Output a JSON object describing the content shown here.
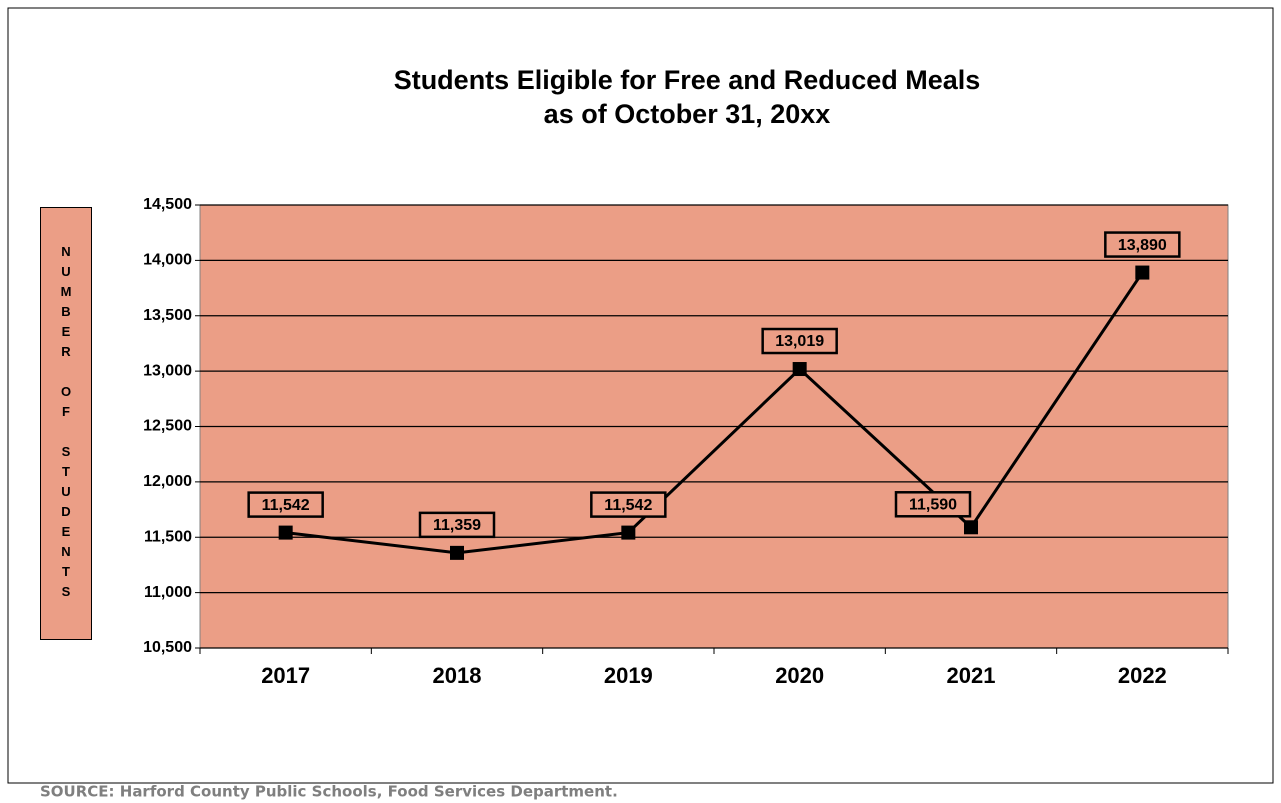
{
  "chart_data": {
    "type": "line",
    "title": "Students Eligible for Free and Reduced Meals",
    "subtitle": "as of October 31, 20xx",
    "ylabel": "NUMBER OF STUDENTS",
    "source": "SOURCE:  Harford County Public Schools, Food Services Department.",
    "categories": [
      "2017",
      "2018",
      "2019",
      "2020",
      "2021",
      "2022"
    ],
    "series": [
      {
        "name": "Students",
        "color": "#000000",
        "values": [
          11542,
          11359,
          11542,
          13019,
          11590,
          13890
        ],
        "value_labels": [
          "11,542",
          "11,359",
          "11,542",
          "13,019",
          "11,590",
          "13,890"
        ]
      }
    ],
    "plot_color": "#eb9e86",
    "ylim": [
      10500,
      14500
    ],
    "yticks": [
      {
        "value": 10500,
        "label": "10,500"
      },
      {
        "value": 11000,
        "label": "11,000"
      },
      {
        "value": 11500,
        "label": "11,500"
      },
      {
        "value": 12000,
        "label": "12,000"
      },
      {
        "value": 12500,
        "label": "12,500"
      },
      {
        "value": 13000,
        "label": "13,000"
      },
      {
        "value": 13500,
        "label": "13,500"
      },
      {
        "value": 14000,
        "label": "14,000"
      },
      {
        "value": 14500,
        "label": "14,500"
      }
    ],
    "grid": true
  }
}
